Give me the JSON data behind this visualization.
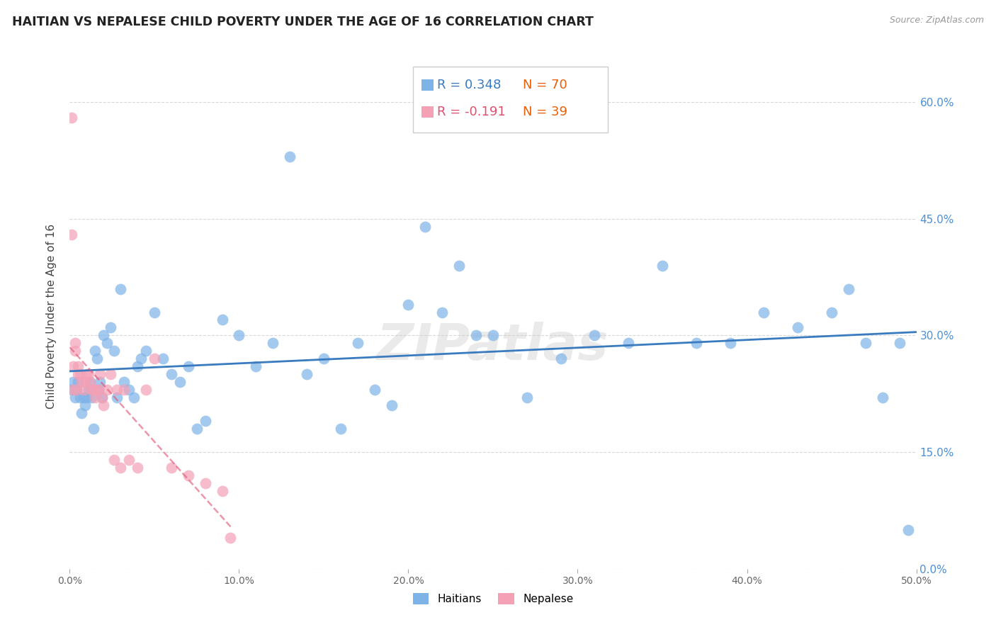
{
  "title": "HAITIAN VS NEPALESE CHILD POVERTY UNDER THE AGE OF 16 CORRELATION CHART",
  "source": "Source: ZipAtlas.com",
  "ylabel": "Child Poverty Under the Age of 16",
  "xlim": [
    0.0,
    0.5
  ],
  "ylim": [
    0.0,
    0.65
  ],
  "xtick_positions": [
    0.0,
    0.1,
    0.2,
    0.3,
    0.4,
    0.5
  ],
  "xtick_labels": [
    "0.0%",
    "10.0%",
    "20.0%",
    "30.0%",
    "40.0%",
    "50.0%"
  ],
  "right_ytick_positions": [
    0.0,
    0.15,
    0.3,
    0.45,
    0.6
  ],
  "right_ytick_labels": [
    "0.0%",
    "15.0%",
    "30.0%",
    "45.0%",
    "60.0%"
  ],
  "haitians_color": "#7eb3e8",
  "nepalese_color": "#f4a0b5",
  "haitians_line_color": "#3a7bbf",
  "nepalese_line_color": "#e05070",
  "legend_R_haitians": "R = 0.348",
  "legend_N_haitians": "N = 70",
  "legend_R_nepalese": "R = -0.191",
  "legend_N_nepalese": "N = 39",
  "watermark": "ZIPatlas",
  "background_color": "#ffffff",
  "grid_color": "#d8d8d8",
  "haitians_x": [
    0.001,
    0.002,
    0.003,
    0.004,
    0.005,
    0.006,
    0.007,
    0.008,
    0.009,
    0.01,
    0.011,
    0.012,
    0.013,
    0.014,
    0.015,
    0.016,
    0.017,
    0.018,
    0.019,
    0.02,
    0.022,
    0.024,
    0.026,
    0.028,
    0.03,
    0.032,
    0.035,
    0.038,
    0.04,
    0.042,
    0.045,
    0.05,
    0.055,
    0.06,
    0.065,
    0.07,
    0.075,
    0.08,
    0.09,
    0.1,
    0.11,
    0.12,
    0.13,
    0.14,
    0.15,
    0.16,
    0.17,
    0.18,
    0.19,
    0.2,
    0.21,
    0.22,
    0.23,
    0.24,
    0.25,
    0.27,
    0.29,
    0.31,
    0.33,
    0.35,
    0.37,
    0.39,
    0.41,
    0.43,
    0.45,
    0.46,
    0.47,
    0.48,
    0.49,
    0.495
  ],
  "haitians_y": [
    0.23,
    0.24,
    0.22,
    0.23,
    0.24,
    0.22,
    0.2,
    0.22,
    0.21,
    0.22,
    0.23,
    0.24,
    0.22,
    0.18,
    0.28,
    0.27,
    0.23,
    0.24,
    0.22,
    0.3,
    0.29,
    0.31,
    0.28,
    0.22,
    0.36,
    0.24,
    0.23,
    0.22,
    0.26,
    0.27,
    0.28,
    0.33,
    0.27,
    0.25,
    0.24,
    0.26,
    0.18,
    0.19,
    0.32,
    0.3,
    0.26,
    0.29,
    0.53,
    0.25,
    0.27,
    0.18,
    0.29,
    0.23,
    0.21,
    0.34,
    0.44,
    0.33,
    0.39,
    0.3,
    0.3,
    0.22,
    0.27,
    0.3,
    0.29,
    0.39,
    0.29,
    0.29,
    0.33,
    0.31,
    0.33,
    0.36,
    0.29,
    0.22,
    0.29,
    0.05
  ],
  "nepalese_x": [
    0.001,
    0.001,
    0.002,
    0.002,
    0.003,
    0.003,
    0.004,
    0.005,
    0.005,
    0.006,
    0.007,
    0.008,
    0.009,
    0.01,
    0.011,
    0.012,
    0.013,
    0.014,
    0.015,
    0.016,
    0.017,
    0.018,
    0.019,
    0.02,
    0.022,
    0.024,
    0.026,
    0.028,
    0.03,
    0.032,
    0.035,
    0.04,
    0.045,
    0.05,
    0.06,
    0.07,
    0.08,
    0.09,
    0.095
  ],
  "nepalese_y": [
    0.58,
    0.43,
    0.23,
    0.26,
    0.28,
    0.29,
    0.23,
    0.25,
    0.26,
    0.25,
    0.24,
    0.23,
    0.24,
    0.25,
    0.25,
    0.24,
    0.23,
    0.23,
    0.22,
    0.23,
    0.23,
    0.25,
    0.22,
    0.21,
    0.23,
    0.25,
    0.14,
    0.23,
    0.13,
    0.23,
    0.14,
    0.13,
    0.23,
    0.27,
    0.13,
    0.12,
    0.11,
    0.1,
    0.04
  ],
  "nepalese_line_x_start": 0.0,
  "nepalese_line_x_end": 0.095,
  "haitians_line_x_start": 0.0,
  "haitians_line_x_end": 0.5
}
